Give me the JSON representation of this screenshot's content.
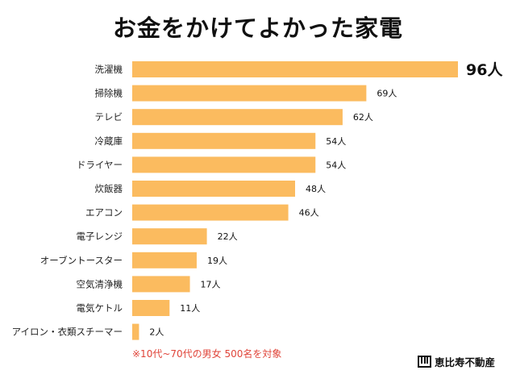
{
  "chart_data": {
    "type": "bar",
    "orientation": "horizontal",
    "title": "お金をかけてよかった家電",
    "categories": [
      "洗濯機",
      "掃除機",
      "テレビ",
      "冷蔵庫",
      "ドライヤー",
      "炊飯器",
      "エアコン",
      "電子レンジ",
      "オーブントースター",
      "空気清浄機",
      "電気ケトル",
      "アイロン・衣類スチーマー"
    ],
    "values": [
      96,
      69,
      62,
      54,
      54,
      48,
      46,
      22,
      19,
      17,
      11,
      2
    ],
    "value_labels": [
      "96人",
      "69人",
      "62人",
      "54人",
      "54人",
      "48人",
      "46人",
      "22人",
      "19人",
      "17人",
      "11人",
      "2人"
    ],
    "bar_color": "#fbbb5f",
    "grid": false,
    "legend": "none",
    "xlim": [
      0,
      96
    ]
  },
  "footnote": "※10代~70代の男女 500名を対象",
  "footnote_color": "#e0453a",
  "brand": "恵比寿不動産"
}
